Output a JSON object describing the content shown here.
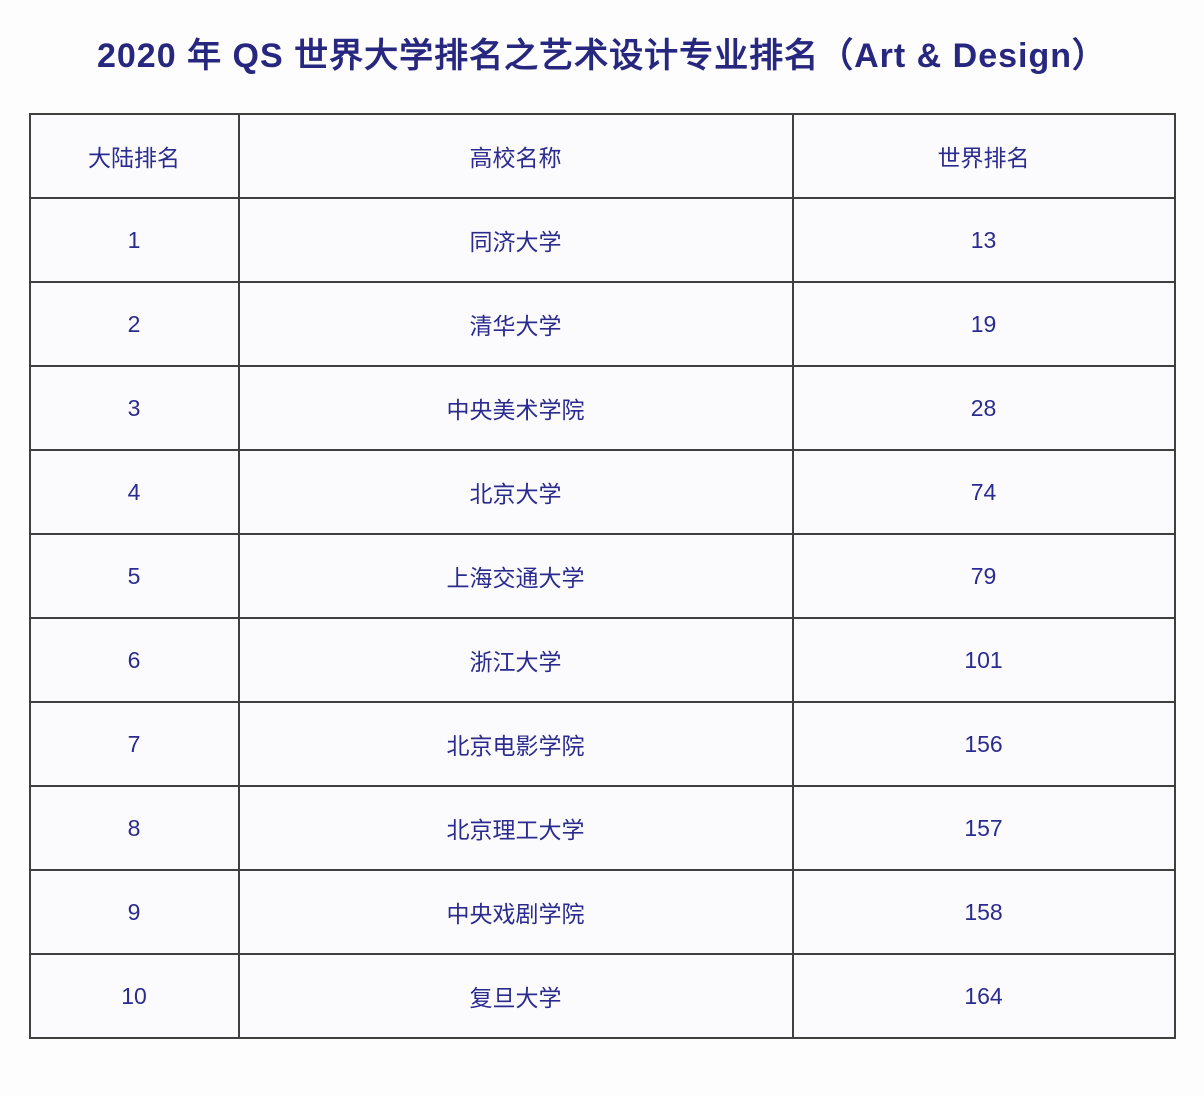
{
  "page": {
    "title": "2020 年 QS 世界大学排名之艺术设计专业排名（Art & Design）"
  },
  "colors": {
    "title_text": "#27277f",
    "cell_text": "#2b2b8f",
    "table_border": "#3f3f3f",
    "cell_background": "#fbfbfd",
    "page_background": "#fdfdfe"
  },
  "table": {
    "headers": [
      "大陆排名",
      "高校名称",
      "世界排名"
    ],
    "rows": [
      {
        "rank": "1",
        "university": "同济大学",
        "world_rank": "13"
      },
      {
        "rank": "2",
        "university": "清华大学",
        "world_rank": "19"
      },
      {
        "rank": "3",
        "university": "中央美术学院",
        "world_rank": "28"
      },
      {
        "rank": "4",
        "university": "北京大学",
        "world_rank": "74"
      },
      {
        "rank": "5",
        "university": "上海交通大学",
        "world_rank": "79"
      },
      {
        "rank": "6",
        "university": "浙江大学",
        "world_rank": "101"
      },
      {
        "rank": "7",
        "university": "北京电影学院",
        "world_rank": "156"
      },
      {
        "rank": "8",
        "university": "北京理工大学",
        "world_rank": "157"
      },
      {
        "rank": "9",
        "university": "中央戏剧学院",
        "world_rank": "158"
      },
      {
        "rank": "10",
        "university": "复旦大学",
        "world_rank": "164"
      }
    ]
  }
}
